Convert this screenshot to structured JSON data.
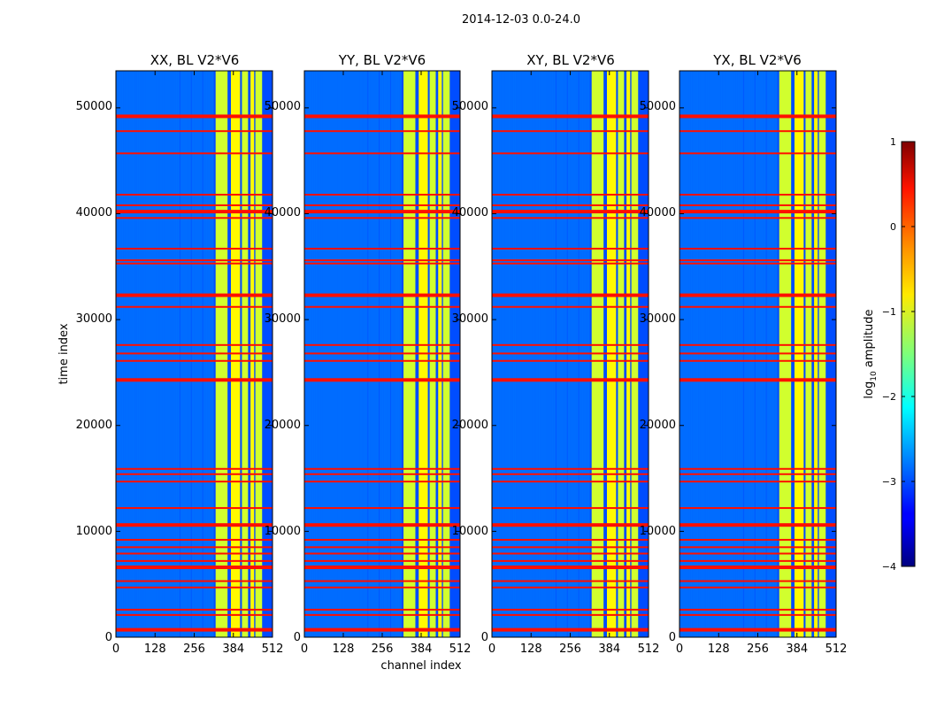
{
  "figure": {
    "suptitle": "2014-12-03 0.0-24.0"
  },
  "chart_data": {
    "type": "heatmap",
    "suptitle": "2014-12-03 0.0-24.0",
    "xlabel": "channel index",
    "ylabel": "time index",
    "xlim": [
      0,
      512
    ],
    "ylim": [
      0,
      53500
    ],
    "xticks": [
      0,
      128,
      256,
      384,
      512
    ],
    "xtick_labels": [
      "0",
      "128",
      "256",
      "384",
      "512"
    ],
    "yticks": [
      0,
      10000,
      20000,
      30000,
      40000,
      50000
    ],
    "ytick_labels": [
      "0",
      "10000",
      "20000",
      "30000",
      "40000",
      "50000"
    ],
    "panels": [
      {
        "title": "XX, BL V2*V6",
        "pol": "XX"
      },
      {
        "title": "YY, BL V2*V6",
        "pol": "YY"
      },
      {
        "title": "XY, BL V2*V6",
        "pol": "XY"
      },
      {
        "title": "YX, BL V2*V6",
        "pol": "YX"
      }
    ],
    "colorbar": {
      "label": "log10 amplitude",
      "label_prefix": "log",
      "label_sub": "10",
      "label_suffix": " amplitude",
      "range": [
        -4,
        1
      ],
      "ticks": [
        1,
        0,
        -1,
        -2,
        -3,
        -4
      ],
      "tick_labels": [
        "1",
        "0",
        "−1",
        "−2",
        "−3",
        "−4"
      ],
      "colormap": "jet"
    },
    "flagged_rows_time_index": [
      700,
      2100,
      2600,
      4700,
      5300,
      6600,
      7200,
      7900,
      8500,
      9200,
      10600,
      12200,
      14700,
      15400,
      15900,
      24300,
      26100,
      26800,
      27600,
      31200,
      32300,
      35300,
      35600,
      36700,
      39600,
      40200,
      40800,
      41800,
      45700,
      47800,
      49200
    ],
    "bright_channel_bands": [
      [
        326,
        365
      ],
      [
        376,
        406
      ],
      [
        412,
        432
      ],
      [
        440,
        452
      ],
      [
        456,
        478
      ]
    ],
    "background_level": -3.0,
    "band_level": -1.0,
    "flag_level": 0.3
  }
}
